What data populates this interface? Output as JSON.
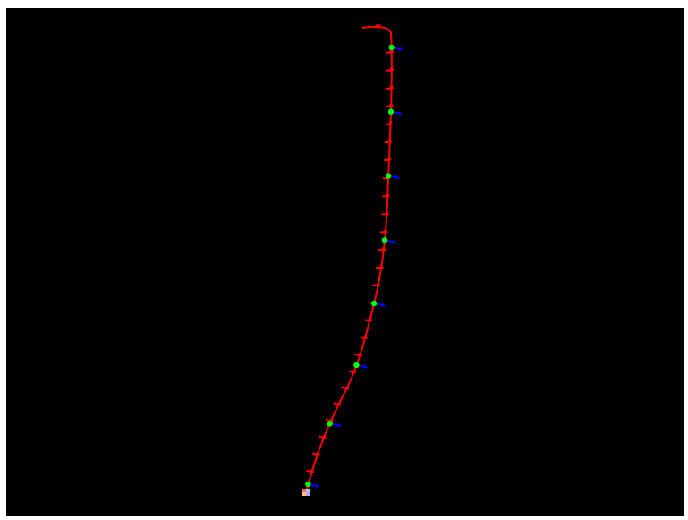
{
  "viewport": {
    "background": "#000000",
    "page_background": "#ffffff"
  },
  "colors": {
    "trajectory": "#ff0000",
    "waypoint": "#00ff00",
    "direction_marker": "#0000ff",
    "origin_marker": [
      "#ff6666",
      "#99ccff",
      "#ffcc66",
      "#cc99ff"
    ]
  },
  "icons": {
    "origin": "origin-marker-icon",
    "waypoint": "waypoint-dot-icon",
    "direction": "direction-arrow-icon",
    "pose": "pose-arrow-icon"
  },
  "scene": {
    "pose_arrow_count": 25,
    "waypoint_count": 8
  }
}
